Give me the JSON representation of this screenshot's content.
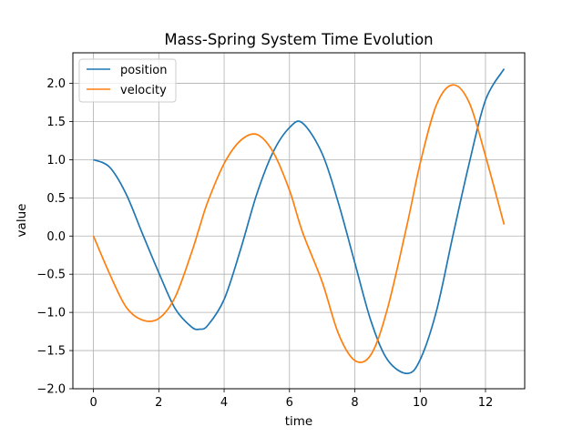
{
  "chart_data": {
    "type": "line",
    "title": "Mass-Spring System Time Evolution",
    "xlabel": "time",
    "ylabel": "value",
    "xlim": [
      -0.63,
      13.2
    ],
    "ylim": [
      -2.0,
      2.4
    ],
    "xticks": [
      0,
      2,
      4,
      6,
      8,
      10,
      12
    ],
    "yticks": [
      -2.0,
      -1.5,
      -1.0,
      -0.5,
      0.0,
      0.5,
      1.0,
      1.5,
      2.0
    ],
    "xtick_labels": [
      "0",
      "2",
      "4",
      "6",
      "8",
      "10",
      "12"
    ],
    "ytick_labels": [
      "−2.0",
      "−1.5",
      "−1.0",
      "−0.5",
      "0.0",
      "0.5",
      "1.0",
      "1.5",
      "2.0"
    ],
    "grid": true,
    "legend_position": "top-left",
    "x": [
      0,
      0.5,
      1.0,
      1.5,
      2.0,
      2.5,
      3.0,
      3.25,
      3.5,
      4.0,
      4.5,
      5.0,
      5.5,
      6.0,
      6.4,
      7.0,
      7.5,
      8.0,
      8.5,
      9.0,
      9.6,
      10.0,
      10.5,
      11.0,
      11.5,
      12.0,
      12.57
    ],
    "series": [
      {
        "name": "position",
        "color": "#1f77b4",
        "values": [
          1.0,
          0.9,
          0.55,
          0.03,
          -0.48,
          -0.95,
          -1.19,
          -1.22,
          -1.17,
          -0.83,
          -0.18,
          0.55,
          1.1,
          1.42,
          1.48,
          1.08,
          0.43,
          -0.35,
          -1.12,
          -1.62,
          -1.8,
          -1.62,
          -0.98,
          0.0,
          0.95,
          1.78,
          2.19
        ]
      },
      {
        "name": "velocity",
        "color": "#ff7f0e",
        "values": [
          0.0,
          -0.5,
          -0.93,
          -1.1,
          -1.08,
          -0.8,
          -0.22,
          0.12,
          0.45,
          0.95,
          1.25,
          1.33,
          1.1,
          0.6,
          0.05,
          -0.6,
          -1.28,
          -1.63,
          -1.55,
          -0.95,
          0.15,
          0.95,
          1.72,
          1.98,
          1.75,
          1.05,
          0.15
        ]
      }
    ]
  }
}
